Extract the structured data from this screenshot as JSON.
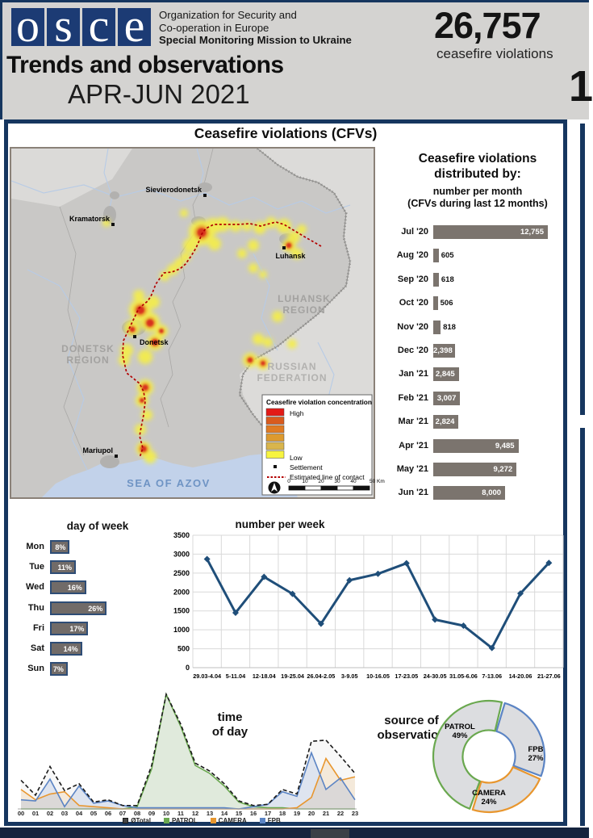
{
  "header": {
    "logo_letters": [
      "o",
      "s",
      "c",
      "e"
    ],
    "org_lines": [
      "Organization for Security and",
      "Co-operation in Europe",
      "Special Monitoring Mission to Ukraine"
    ],
    "title": "Trends and observations",
    "period": "APR-JUN 2021",
    "big_number": "26,757",
    "big_number_caption": "ceasefire violations",
    "page_number": "1"
  },
  "section_title": "Ceasefire violations (CFVs)",
  "colors": {
    "frame_navy": "#16365f",
    "bar_gray": "#7b746e",
    "line_navy": "#1f4e79",
    "contact_line_red": "#b30000",
    "patrol_green": "#6aa84f",
    "camera_orange": "#e8962e",
    "fpb_blue": "#5b84c4",
    "total_black": "#1a1a1a"
  },
  "map": {
    "cities": [
      "Sievierodonetsk",
      "Kramatorsk",
      "Luhansk",
      "Donetsk",
      "Mariupol"
    ],
    "region_labels": [
      {
        "lines": [
          "LUHANSK",
          "REGION"
        ]
      },
      {
        "lines": [
          "DONETSK",
          "REGION"
        ]
      },
      {
        "lines": [
          "RUSSIAN",
          "FEDERATION"
        ]
      }
    ],
    "sea_label": "SEA OF AZOV",
    "legend": {
      "title": "Ceasefire violation concentration",
      "high_label": "High",
      "low_label": "Low",
      "settlement_label": "Settlement",
      "contact_line_label": "Estimated line of contact",
      "scale_ticks": [
        "0",
        "10",
        "20",
        "30",
        "40",
        "50 Km"
      ],
      "ramp_colors": [
        "#e31a17",
        "#d95b1e",
        "#e07b23",
        "#dd9a2e",
        "#d9b54c",
        "#f7f440"
      ]
    }
  },
  "chart_data": [
    {
      "type": "bar",
      "orientation": "horizontal",
      "title": "Ceasefire violations distributed by:",
      "subtitle": "number per month",
      "subtitle2": "(CFVs during last 12 months)",
      "categories": [
        "Jul '20",
        "Aug '20",
        "Sep '20",
        "Oct '20",
        "Nov '20",
        "Dec '20",
        "Jan '21",
        "Feb '21",
        "Mar '21",
        "Apr '21",
        "May '21",
        "Jun '21"
      ],
      "values": [
        12755,
        605,
        618,
        506,
        818,
        2398,
        2845,
        3007,
        2824,
        9485,
        9272,
        8000
      ],
      "labels": [
        "12,755",
        "605",
        "618",
        "506",
        "818",
        "2,398",
        "2,845",
        "3,007",
        "2,824",
        "9,485",
        "9,272",
        "8,000"
      ],
      "bar_color": "#7b746e"
    },
    {
      "type": "bar",
      "orientation": "horizontal",
      "title": "day of week",
      "categories": [
        "Mon",
        "Tue",
        "Wed",
        "Thu",
        "Fri",
        "Sat",
        "Sun"
      ],
      "values": [
        8,
        11,
        16,
        26,
        17,
        14,
        7
      ],
      "labels": [
        "8%",
        "11%",
        "16%",
        "26%",
        "17%",
        "14%",
        "7%"
      ],
      "bar_color": "#716b68"
    },
    {
      "type": "line",
      "title": "number per week",
      "categories": [
        "29.03-4.04",
        "5-11.04",
        "12-18.04",
        "19-25.04",
        "26.04-2.05",
        "3-9.05",
        "10-16.05",
        "17-23.05",
        "24-30.05",
        "31.05-6.06",
        "7-13.06",
        "14-20.06",
        "21-27.06"
      ],
      "values": [
        2870,
        1450,
        2400,
        1950,
        1160,
        2310,
        2480,
        2760,
        1270,
        1110,
        520,
        1960,
        2770
      ],
      "ylim": [
        0,
        3500
      ],
      "ytick_step": 500,
      "grid": true,
      "line_color": "#1f4e79"
    },
    {
      "type": "area",
      "title": "time of day",
      "title_lines": [
        "time",
        "of day"
      ],
      "categories": [
        "00",
        "01",
        "02",
        "03",
        "04",
        "05",
        "06",
        "07",
        "08",
        "09",
        "10",
        "11",
        "12",
        "13",
        "14",
        "15",
        "16",
        "17",
        "18",
        "19",
        "20",
        "21",
        "22",
        "23"
      ],
      "series": [
        {
          "name": "ØTotal",
          "color": "#1a1a1a",
          "style": "dashed",
          "values": [
            25,
            12,
            37,
            16,
            22,
            6,
            8,
            3,
            3,
            38,
            100,
            74,
            40,
            33,
            22,
            7,
            3,
            4,
            17,
            13,
            59,
            60,
            46,
            31
          ]
        },
        {
          "name": "PATROL",
          "color": "#6aa84f",
          "style": "solid",
          "values": [
            0,
            0,
            0,
            0,
            0,
            0,
            0,
            0,
            2,
            35,
            100,
            72,
            38,
            31,
            20,
            6,
            2,
            1,
            1,
            0,
            0,
            0,
            0,
            0
          ]
        },
        {
          "name": "CAMERA",
          "color": "#e8962e",
          "style": "solid",
          "values": [
            17,
            8,
            13,
            15,
            3,
            2,
            1,
            0,
            0,
            0,
            0,
            0,
            0,
            0,
            0,
            0,
            0,
            0,
            0,
            1,
            10,
            44,
            25,
            28
          ]
        },
        {
          "name": "FPB",
          "color": "#5b84c4",
          "style": "solid",
          "values": [
            8,
            7,
            26,
            2,
            20,
            5,
            7,
            3,
            1,
            1,
            1,
            1,
            1,
            1,
            1,
            0,
            2,
            4,
            15,
            11,
            49,
            17,
            27,
            8
          ]
        }
      ],
      "legend_position": "bottom"
    },
    {
      "type": "pie",
      "title": "source of observation",
      "title_lines": [
        "source of",
        "observation"
      ],
      "slices": [
        {
          "label": "PATROL",
          "pct_label": "49%",
          "value": 49,
          "color": "#6aa84f"
        },
        {
          "label": "FPB",
          "pct_label": "27%",
          "value": 27,
          "color": "#5b84c4"
        },
        {
          "label": "CAMERA",
          "pct_label": "24%",
          "value": 24,
          "color": "#e8962e"
        }
      ],
      "fill": "#dcdde0"
    }
  ]
}
